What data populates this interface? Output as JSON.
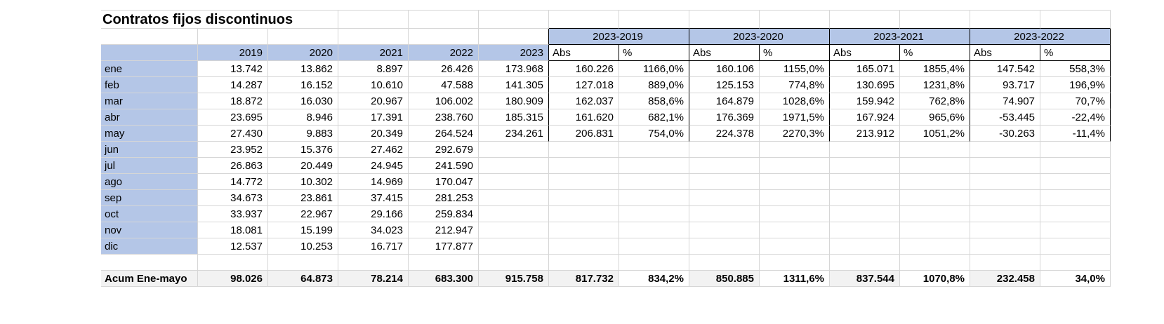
{
  "title": "Contratos fijos discontinuos",
  "colors": {
    "accent_blue": "#b4c6e7",
    "summary_gray": "#f2f2f2",
    "gridline": "#d6d6d6",
    "border_black": "#000000",
    "text": "#000000"
  },
  "table": {
    "year_columns": [
      "2019",
      "2020",
      "2021",
      "2022",
      "2023"
    ],
    "comparison_groups": [
      {
        "label": "2023-2019",
        "abs_header": "Abs",
        "pct_header": "%"
      },
      {
        "label": "2023-2020",
        "abs_header": "Abs",
        "pct_header": "%"
      },
      {
        "label": "2023-2021",
        "abs_header": "Abs",
        "pct_header": "%"
      },
      {
        "label": "2023-2022",
        "abs_header": "Abs",
        "pct_header": "%"
      }
    ],
    "rows": [
      {
        "label": "ene",
        "values": [
          "13.742",
          "13.862",
          "8.897",
          "26.426",
          "173.968"
        ],
        "comparisons": [
          "160.226",
          "1166,0%",
          "160.106",
          "1155,0%",
          "165.071",
          "1855,4%",
          "147.542",
          "558,3%"
        ]
      },
      {
        "label": "feb",
        "values": [
          "14.287",
          "16.152",
          "10.610",
          "47.588",
          "141.305"
        ],
        "comparisons": [
          "127.018",
          "889,0%",
          "125.153",
          "774,8%",
          "130.695",
          "1231,8%",
          "93.717",
          "196,9%"
        ]
      },
      {
        "label": "mar",
        "values": [
          "18.872",
          "16.030",
          "20.967",
          "106.002",
          "180.909"
        ],
        "comparisons": [
          "162.037",
          "858,6%",
          "164.879",
          "1028,6%",
          "159.942",
          "762,8%",
          "74.907",
          "70,7%"
        ]
      },
      {
        "label": "abr",
        "values": [
          "23.695",
          "8.946",
          "17.391",
          "238.760",
          "185.315"
        ],
        "comparisons": [
          "161.620",
          "682,1%",
          "176.369",
          "1971,5%",
          "167.924",
          "965,6%",
          "-53.445",
          "-22,4%"
        ]
      },
      {
        "label": "may",
        "values": [
          "27.430",
          "9.883",
          "20.349",
          "264.524",
          "234.261"
        ],
        "comparisons": [
          "206.831",
          "754,0%",
          "224.378",
          "2270,3%",
          "213.912",
          "1051,2%",
          "-30.263",
          "-11,4%"
        ]
      },
      {
        "label": "jun",
        "values": [
          "23.952",
          "15.376",
          "27.462",
          "292.679"
        ]
      },
      {
        "label": "jul",
        "values": [
          "26.863",
          "20.449",
          "24.945",
          "241.590"
        ]
      },
      {
        "label": "ago",
        "values": [
          "14.772",
          "10.302",
          "14.969",
          "170.047"
        ]
      },
      {
        "label": "sep",
        "values": [
          "34.673",
          "23.861",
          "37.415",
          "281.253"
        ]
      },
      {
        "label": "oct",
        "values": [
          "33.937",
          "22.967",
          "29.166",
          "259.834"
        ]
      },
      {
        "label": "nov",
        "values": [
          "18.081",
          "15.199",
          "34.023",
          "212.947"
        ]
      },
      {
        "label": "dic",
        "values": [
          "12.537",
          "10.253",
          "16.717",
          "177.877"
        ]
      }
    ],
    "summary": {
      "label": "Acum Ene-mayo",
      "values": [
        "98.026",
        "64.873",
        "78.214",
        "683.300",
        "915.758"
      ],
      "comparisons": [
        "817.732",
        "834,2%",
        "850.885",
        "1311,6%",
        "837.544",
        "1070,8%",
        "232.458",
        "34,0%"
      ]
    }
  }
}
